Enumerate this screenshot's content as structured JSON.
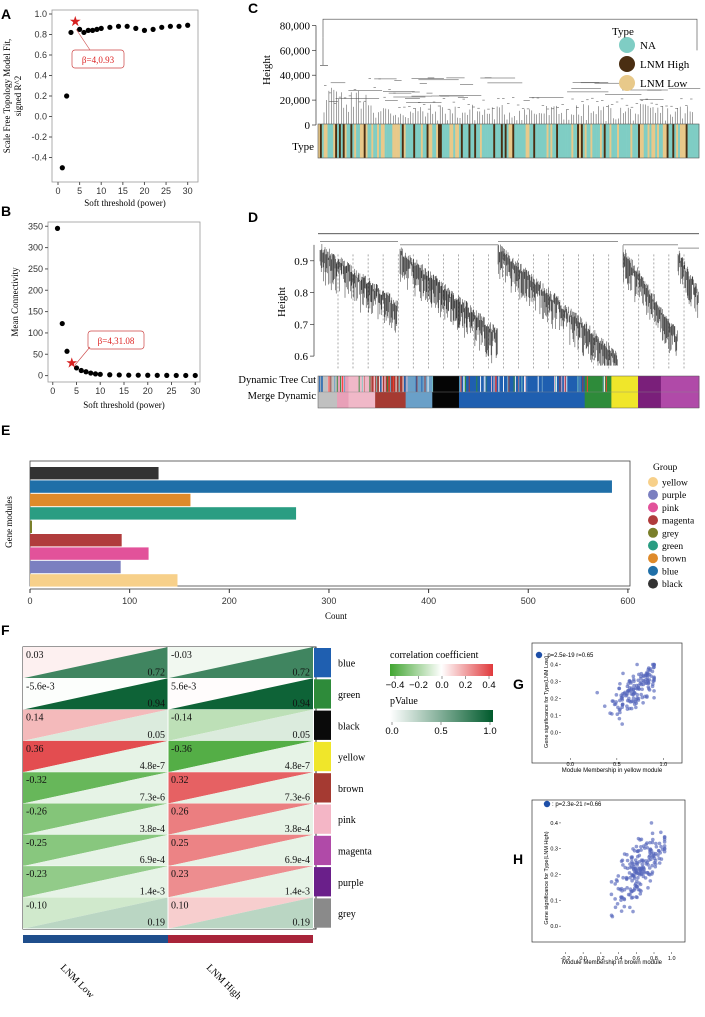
{
  "panels": {
    "A": {
      "letter": "A",
      "ylabel_line1": "Scale Free Topology Model Fit,",
      "ylabel_line2": "signed R^2",
      "xlabel": "Soft threshold (power)",
      "annotation": "β=4,0.93"
    },
    "B": {
      "letter": "B",
      "ylabel": "Mean Connectivity",
      "xlabel": "Soft threshold (power)",
      "annotation": "β=4,31.08"
    },
    "C": {
      "letter": "C",
      "ylabel": "Height",
      "row_label": "Type",
      "legend_title": "Type",
      "legend": [
        {
          "label": "NA",
          "color": "#7fcdc4"
        },
        {
          "label": "LNM High",
          "color": "#4a2e12"
        },
        {
          "label": "LNM Low",
          "color": "#e8c98a"
        }
      ]
    },
    "D": {
      "letter": "D",
      "ylabel": "Height",
      "row1_label": "Dynamic Tree Cut",
      "row2_label": "Merge Dynamic"
    },
    "E": {
      "letter": "E",
      "ylabel": "Gene modules",
      "xlabel": "Count",
      "legend_title": "Group"
    },
    "F": {
      "letter": "F",
      "columns": [
        "LNM Low",
        "LNM High"
      ],
      "legend_title_corr": "correlation coefficient",
      "legend_title_p": "pValue",
      "corr_ticks": [
        "−0.4",
        "−0.2",
        "0.0",
        "0.2",
        "0.4"
      ],
      "p_ticks": [
        "0.0",
        "0.5",
        "1.0"
      ]
    },
    "G": {
      "letter": "G",
      "legend_text": ": p=2.5e-19 r=0.65",
      "ylabel": "Gene significance for Type(LNM Low)",
      "xlabel": "Module Membership in yellow module"
    },
    "H": {
      "letter": "H",
      "legend_text": ": p=2.3e-21 r=0.66",
      "ylabel": "Gene significance for Type(LNM High)",
      "xlabel": "Module Membership in brown module"
    }
  },
  "chart_data": [
    {
      "id": "A",
      "type": "scatter",
      "x": [
        1,
        2,
        3,
        4,
        5,
        6,
        7,
        8,
        9,
        10,
        12,
        14,
        16,
        18,
        20,
        22,
        24,
        26,
        28,
        30
      ],
      "y": [
        -0.5,
        0.2,
        0.82,
        0.93,
        0.85,
        0.82,
        0.84,
        0.84,
        0.85,
        0.86,
        0.87,
        0.88,
        0.88,
        0.86,
        0.84,
        0.85,
        0.87,
        0.88,
        0.88,
        0.89
      ],
      "highlight": {
        "x": 4,
        "y": 0.93
      },
      "xlim": [
        0,
        31
      ],
      "ylim": [
        -0.6,
        1.0
      ],
      "xticks": [
        0,
        5,
        10,
        15,
        20,
        25,
        30
      ],
      "yticks": [
        -0.4,
        -0.2,
        0.0,
        0.2,
        0.4,
        0.6,
        0.8,
        1.0
      ]
    },
    {
      "id": "B",
      "type": "scatter",
      "x": [
        1,
        2,
        3,
        4,
        5,
        6,
        7,
        8,
        9,
        10,
        12,
        14,
        16,
        18,
        20,
        22,
        24,
        26,
        28,
        30
      ],
      "y": [
        345,
        122,
        57,
        31.08,
        18,
        12,
        9,
        6,
        4,
        3,
        2,
        1.5,
        1,
        1,
        0.8,
        0.6,
        0.5,
        0.4,
        0.3,
        0.3
      ],
      "highlight": {
        "x": 4,
        "y": 31.08
      },
      "xlim": [
        -1,
        31
      ],
      "ylim": [
        -15,
        360
      ],
      "xticks": [
        0,
        5,
        10,
        15,
        20,
        25,
        30
      ],
      "yticks": [
        0,
        50,
        100,
        150,
        200,
        250,
        300,
        350
      ]
    },
    {
      "id": "C",
      "type": "dendrogram",
      "ylabel": "Height",
      "yticks": [
        "0",
        "20,000",
        "40,000",
        "60,000",
        "80,000"
      ],
      "ylim": [
        0,
        90000
      ]
    },
    {
      "id": "D",
      "type": "dendrogram",
      "ylabel": "Height",
      "yticks": [
        "0.6",
        "0.7",
        "0.8",
        "0.9"
      ],
      "ylim": [
        0.55,
        1.0
      ]
    },
    {
      "id": "E",
      "type": "bar",
      "orientation": "horizontal",
      "categories": [
        "black",
        "blue",
        "brown",
        "green",
        "grey",
        "magenta",
        "pink",
        "purple",
        "yellow"
      ],
      "values": [
        129,
        584,
        161,
        267,
        2,
        92,
        119,
        91,
        148
      ],
      "colors": [
        "#333333",
        "#1f6fa8",
        "#de8a2a",
        "#2a9d82",
        "#7a7f2a",
        "#b03c3c",
        "#e2529a",
        "#7b7fc0",
        "#f7d08a"
      ],
      "legend": [
        "yellow",
        "purple",
        "pink",
        "magenta",
        "grey",
        "green",
        "brown",
        "blue",
        "black"
      ],
      "xlim": [
        0,
        600
      ],
      "xticks": [
        0,
        100,
        200,
        300,
        400,
        500,
        600
      ],
      "xlabel": "Count",
      "ylabel": "Gene modules"
    },
    {
      "id": "F",
      "type": "heatmap",
      "rows": [
        "blue",
        "green",
        "black",
        "yellow",
        "brown",
        "pink",
        "magenta",
        "purple",
        "grey"
      ],
      "row_colors": [
        "#1f5fb0",
        "#2e8b3a",
        "#0a0a0a",
        "#f0e62a",
        "#a53a32",
        "#f4b6c6",
        "#b04aa8",
        "#6a1f8a",
        "#8a8a8a"
      ],
      "columns": [
        "LNM Low",
        "LNM High"
      ],
      "corr_text": [
        [
          "0.03",
          "-0.03"
        ],
        [
          "-5.6e-3",
          "5.6e-3"
        ],
        [
          "0.14",
          "-0.14"
        ],
        [
          "0.36",
          "-0.36"
        ],
        [
          "-0.32",
          "0.32"
        ],
        [
          "-0.26",
          "0.26"
        ],
        [
          "-0.25",
          "0.25"
        ],
        [
          "-0.23",
          "0.23"
        ],
        [
          "-0.10",
          "0.10"
        ]
      ],
      "corr": [
        [
          0.03,
          -0.03
        ],
        [
          -0.0056,
          0.0056
        ],
        [
          0.14,
          -0.14
        ],
        [
          0.36,
          -0.36
        ],
        [
          -0.32,
          0.32
        ],
        [
          -0.26,
          0.26
        ],
        [
          -0.25,
          0.25
        ],
        [
          -0.23,
          0.23
        ],
        [
          -0.1,
          0.1
        ]
      ],
      "p_text": [
        [
          "0.72",
          "0.72"
        ],
        [
          "0.94",
          "0.94"
        ],
        [
          "0.05",
          "0.05"
        ],
        [
          "4.8e-7",
          "4.8e-7"
        ],
        [
          "7.3e-6",
          "7.3e-6"
        ],
        [
          "3.8e-4",
          "3.8e-4"
        ],
        [
          "6.9e-4",
          "6.9e-4"
        ],
        [
          "1.4e-3",
          "1.4e-3"
        ],
        [
          "0.19",
          "0.19"
        ]
      ],
      "p": [
        [
          0.72,
          0.72
        ],
        [
          0.94,
          0.94
        ],
        [
          0.05,
          0.05
        ],
        [
          4.8e-07,
          4.8e-07
        ],
        [
          7.3e-06,
          7.3e-06
        ],
        [
          0.00038,
          0.00038
        ],
        [
          0.00069,
          0.00069
        ],
        [
          0.0014,
          0.0014
        ],
        [
          0.19,
          0.19
        ]
      ],
      "column_bar_colors": [
        "#1f4e8c",
        "#a8243a"
      ]
    },
    {
      "id": "G",
      "type": "scatter",
      "n_points": 150,
      "r": 0.65,
      "p": "2.5e-19",
      "xlim": [
        -0.1,
        1.2
      ],
      "ylim": [
        -0.15,
        0.45
      ],
      "xticks": [
        0.0,
        0.5,
        1.0
      ],
      "yticks": [
        0.0,
        0.1,
        0.2,
        0.3,
        0.4
      ],
      "xlabel": "Module Membership in yellow module",
      "ylabel": "Gene significance for Type(LNM Low)"
    },
    {
      "id": "H",
      "type": "scatter",
      "n_points": 200,
      "r": 0.66,
      "p": "2.3e-21",
      "xlim": [
        -0.25,
        1.15
      ],
      "ylim": [
        -0.1,
        0.45
      ],
      "xticks": [
        -0.2,
        0.0,
        0.2,
        0.4,
        0.6,
        0.8,
        1.0
      ],
      "yticks": [
        0.0,
        0.1,
        0.2,
        0.3,
        0.4
      ],
      "xlabel": "Module Membership in brown module",
      "ylabel": "Gene significance for Type(LNM High)"
    }
  ]
}
